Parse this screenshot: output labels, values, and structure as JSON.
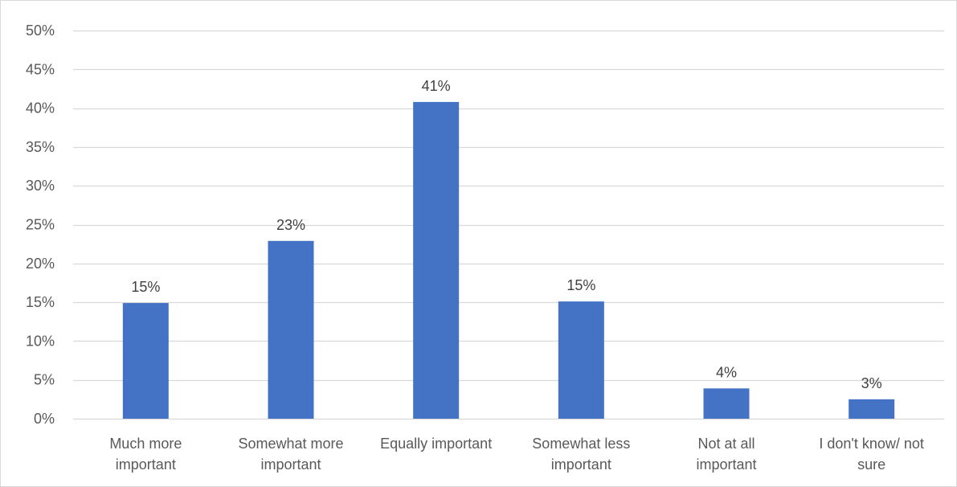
{
  "chart_data": {
    "type": "bar",
    "title": "",
    "xlabel": "",
    "ylabel": "",
    "categories": [
      [
        "Much more",
        "important"
      ],
      [
        "Somewhat more",
        "important"
      ],
      [
        "Equally important"
      ],
      [
        "Somewhat less",
        "important"
      ],
      [
        "Not at all",
        "important"
      ],
      [
        "I don't know/ not",
        "sure"
      ]
    ],
    "values": [
      15,
      23,
      41,
      15,
      4,
      3
    ],
    "bar_heights": [
      14.9,
      22.9,
      40.8,
      15.1,
      3.9,
      2.5
    ],
    "data_labels": [
      "15%",
      "23%",
      "41%",
      "15%",
      "4%",
      "3%"
    ],
    "ylim": [
      0,
      50
    ],
    "yticks": [
      0,
      5,
      10,
      15,
      20,
      25,
      30,
      35,
      40,
      45,
      50
    ],
    "ytick_labels": [
      "0%",
      "5%",
      "10%",
      "15%",
      "20%",
      "25%",
      "30%",
      "35%",
      "40%",
      "45%",
      "50%"
    ],
    "grid": true,
    "legend": "none",
    "colors": {
      "bar": "#4472c4",
      "grid": "#d9d9d9",
      "axis": "#d9d9d9"
    }
  }
}
